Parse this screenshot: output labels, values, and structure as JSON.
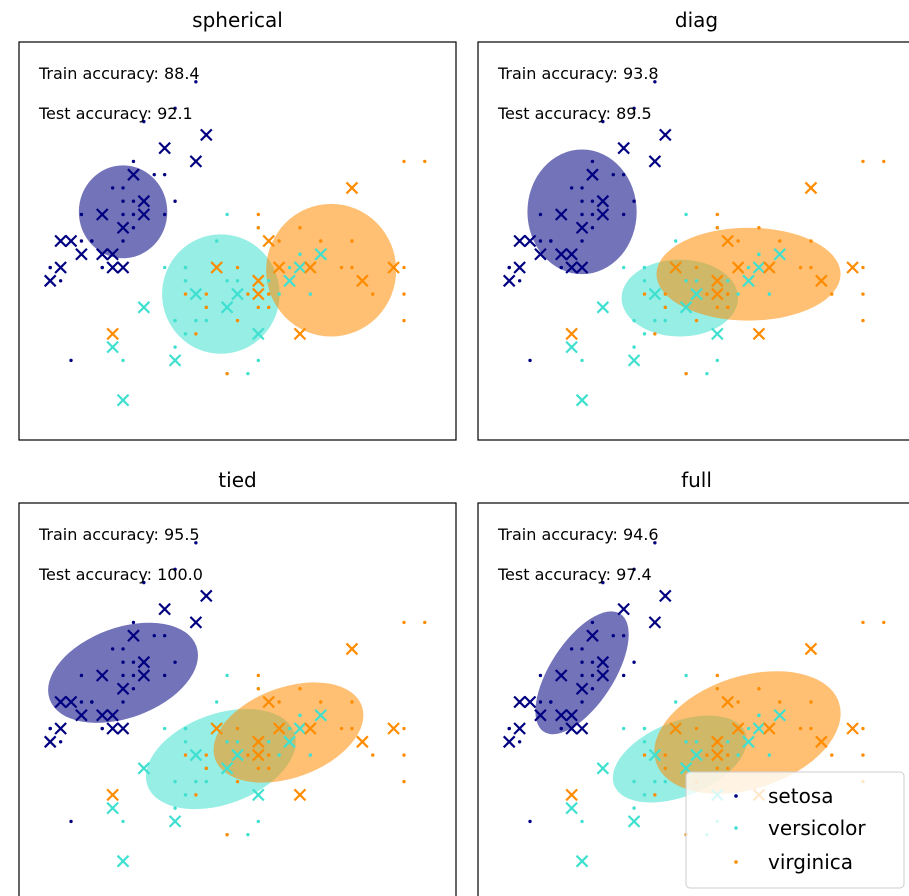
{
  "colors": {
    "setosa": "#000080",
    "versicolor": "#40e0d0",
    "virginica": "#ff8c00"
  },
  "legend": {
    "placement": "lower-right of last panel",
    "entries": [
      "setosa",
      "versicolor",
      "virginica"
    ]
  },
  "chart_data": [
    {
      "type": "scatter",
      "title": "spherical",
      "train_label": "Train accuracy: 88.4",
      "test_label": "Test accuracy: 92.1",
      "xlim": [
        4.0,
        8.2
      ],
      "ylim": [
        1.7,
        4.7
      ],
      "ellipses": [
        {
          "class": "setosa",
          "cx": 5.0,
          "cy": 3.42,
          "w": 0.85,
          "h": 0.7,
          "angle": 0
        },
        {
          "class": "versicolor",
          "cx": 5.94,
          "cy": 2.8,
          "w": 1.13,
          "h": 0.9,
          "angle": 0
        },
        {
          "class": "virginica",
          "cx": 7.0,
          "cy": 2.98,
          "w": 1.25,
          "h": 1.0,
          "angle": 0
        }
      ]
    },
    {
      "type": "scatter",
      "title": "diag",
      "train_label": "Train accuracy: 93.8",
      "test_label": "Test accuracy: 89.5",
      "xlim": [
        4.0,
        8.2
      ],
      "ylim": [
        1.7,
        4.7
      ],
      "ellipses": [
        {
          "class": "setosa",
          "cx": 5.0,
          "cy": 3.42,
          "w": 1.05,
          "h": 0.94,
          "angle": 0
        },
        {
          "class": "versicolor",
          "cx": 5.94,
          "cy": 2.77,
          "w": 1.12,
          "h": 0.58,
          "angle": 0
        },
        {
          "class": "virginica",
          "cx": 6.6,
          "cy": 2.95,
          "w": 1.77,
          "h": 0.7,
          "angle": 0
        }
      ]
    },
    {
      "type": "scatter",
      "title": "tied",
      "train_label": "Train accuracy: 95.5",
      "test_label": "Test accuracy: 100.0",
      "xlim": [
        4.0,
        8.2
      ],
      "ylim": [
        1.7,
        4.7
      ],
      "ellipses": [
        {
          "class": "setosa",
          "cx": 5.0,
          "cy": 3.42,
          "w": 1.5,
          "h": 0.68,
          "angle": 20
        },
        {
          "class": "versicolor",
          "cx": 5.94,
          "cy": 2.77,
          "w": 1.5,
          "h": 0.68,
          "angle": 20
        },
        {
          "class": "virginica",
          "cx": 6.59,
          "cy": 2.97,
          "w": 1.5,
          "h": 0.68,
          "angle": 20
        }
      ]
    },
    {
      "type": "scatter",
      "title": "full",
      "train_label": "Train accuracy: 94.6",
      "test_label": "Test accuracy: 97.4",
      "xlim": [
        4.0,
        8.2
      ],
      "ylim": [
        1.7,
        4.7
      ],
      "ellipses": [
        {
          "class": "setosa",
          "cx": 5.0,
          "cy": 3.42,
          "w": 1.35,
          "h": 0.48,
          "angle": 57
        },
        {
          "class": "versicolor",
          "cx": 5.94,
          "cy": 2.77,
          "w": 1.36,
          "h": 0.56,
          "angle": 22
        },
        {
          "class": "virginica",
          "cx": 6.59,
          "cy": 2.97,
          "w": 1.85,
          "h": 0.85,
          "angle": 18
        }
      ]
    }
  ],
  "train_points": {
    "setosa": [
      [
        5.1,
        3.5
      ],
      [
        4.9,
        3.0
      ],
      [
        4.7,
        3.2
      ],
      [
        4.6,
        3.1
      ],
      [
        5.0,
        3.6
      ],
      [
        5.4,
        3.9
      ],
      [
        4.6,
        3.4
      ],
      [
        5.0,
        3.4
      ],
      [
        4.4,
        2.9
      ],
      [
        4.9,
        3.1
      ],
      [
        5.4,
        3.7
      ],
      [
        4.8,
        3.4
      ],
      [
        4.8,
        3.0
      ],
      [
        4.3,
        3.0
      ],
      [
        5.8,
        4.0
      ],
      [
        5.7,
        4.4
      ],
      [
        5.1,
        3.8
      ],
      [
        5.2,
        3.5
      ],
      [
        5.2,
        3.4
      ],
      [
        4.7,
        3.2
      ],
      [
        4.8,
        3.1
      ],
      [
        5.4,
        3.4
      ],
      [
        5.2,
        4.1
      ],
      [
        5.5,
        4.2
      ],
      [
        5.0,
        3.2
      ],
      [
        5.5,
        3.5
      ],
      [
        4.4,
        3.0
      ],
      [
        5.1,
        3.4
      ],
      [
        4.5,
        2.3
      ],
      [
        5.0,
        3.5
      ],
      [
        5.1,
        3.3
      ],
      [
        4.8,
        3.0
      ],
      [
        5.3,
        3.7
      ],
      [
        4.6,
        3.2
      ],
      [
        4.9,
        3.6
      ],
      [
        5.7,
        3.8
      ],
      [
        4.3,
        3.0
      ],
      [
        4.4,
        3.2
      ]
    ],
    "versicolor": [
      [
        6.4,
        3.2
      ],
      [
        6.9,
        3.1
      ],
      [
        5.5,
        2.3
      ],
      [
        6.5,
        2.8
      ],
      [
        6.3,
        3.3
      ],
      [
        4.9,
        2.4
      ],
      [
        6.6,
        2.9
      ],
      [
        5.2,
        2.7
      ],
      [
        5.0,
        2.0
      ],
      [
        5.9,
        3.0
      ],
      [
        6.0,
        2.2
      ],
      [
        6.1,
        2.9
      ],
      [
        5.6,
        2.9
      ],
      [
        6.7,
        3.1
      ],
      [
        5.6,
        3.0
      ],
      [
        5.8,
        2.7
      ],
      [
        6.2,
        2.2
      ],
      [
        5.6,
        2.5
      ],
      [
        5.9,
        3.2
      ],
      [
        6.1,
        2.8
      ],
      [
        6.3,
        2.5
      ],
      [
        6.4,
        2.9
      ],
      [
        6.6,
        3.0
      ],
      [
        6.8,
        2.8
      ],
      [
        6.0,
        2.9
      ],
      [
        5.7,
        2.6
      ],
      [
        5.5,
        2.4
      ],
      [
        5.8,
        2.7
      ],
      [
        6.0,
        2.7
      ],
      [
        5.4,
        3.0
      ],
      [
        6.0,
        3.4
      ],
      [
        6.7,
        3.1
      ],
      [
        6.3,
        2.3
      ],
      [
        5.6,
        3.0
      ],
      [
        5.5,
        2.6
      ],
      [
        6.1,
        3.0
      ],
      [
        5.8,
        2.6
      ],
      [
        5.0,
        2.3
      ]
    ],
    "virginica": [
      [
        6.3,
        3.3
      ],
      [
        5.8,
        2.7
      ],
      [
        7.1,
        3.0
      ],
      [
        6.3,
        2.9
      ],
      [
        6.5,
        3.0
      ],
      [
        7.6,
        3.0
      ],
      [
        4.9,
        2.5
      ],
      [
        7.3,
        2.9
      ],
      [
        6.7,
        2.5
      ],
      [
        7.2,
        3.6
      ],
      [
        6.5,
        3.2
      ],
      [
        6.4,
        2.7
      ],
      [
        6.8,
        3.0
      ],
      [
        5.7,
        2.5
      ],
      [
        5.8,
        2.8
      ],
      [
        6.4,
        3.2
      ],
      [
        6.5,
        3.0
      ],
      [
        7.7,
        3.8
      ],
      [
        7.7,
        2.6
      ],
      [
        6.0,
        2.2
      ],
      [
        6.9,
        3.2
      ],
      [
        5.6,
        2.8
      ],
      [
        7.7,
        2.8
      ],
      [
        6.3,
        2.7
      ],
      [
        6.7,
        3.3
      ],
      [
        7.2,
        3.2
      ],
      [
        6.2,
        2.8
      ],
      [
        6.1,
        3.0
      ],
      [
        6.4,
        2.8
      ],
      [
        7.2,
        3.0
      ],
      [
        7.4,
        2.8
      ],
      [
        7.9,
        3.8
      ],
      [
        6.4,
        2.8
      ],
      [
        6.1,
        2.6
      ],
      [
        7.7,
        3.0
      ],
      [
        6.3,
        3.4
      ],
      [
        6.9,
        3.1
      ],
      [
        5.9,
        3.0
      ]
    ]
  },
  "test_points": {
    "setosa": [
      [
        5.4,
        3.9
      ],
      [
        5.8,
        4.0
      ],
      [
        5.7,
        3.8
      ],
      [
        5.1,
        3.7
      ],
      [
        5.2,
        3.4
      ],
      [
        4.8,
        3.4
      ],
      [
        4.8,
        3.1
      ],
      [
        4.4,
        3.2
      ],
      [
        4.4,
        3.0
      ],
      [
        4.9,
        3.1
      ],
      [
        5.0,
        3.3
      ],
      [
        4.9,
        3.0
      ],
      [
        5.0,
        3.0
      ],
      [
        4.6,
        3.1
      ],
      [
        4.3,
        2.9
      ],
      [
        4.5,
        3.2
      ],
      [
        5.2,
        3.5
      ]
    ],
    "versicolor": [
      [
        5.0,
        2.0
      ],
      [
        4.9,
        2.4
      ],
      [
        5.2,
        2.7
      ],
      [
        5.5,
        2.3
      ],
      [
        5.7,
        2.8
      ],
      [
        6.1,
        2.8
      ],
      [
        6.3,
        2.5
      ],
      [
        6.6,
        2.9
      ],
      [
        6.7,
        3.0
      ],
      [
        6.9,
        3.1
      ],
      [
        6.0,
        2.7
      ],
      [
        5.9,
        3.0
      ]
    ],
    "virginica": [
      [
        4.9,
        2.5
      ],
      [
        5.9,
        3.0
      ],
      [
        6.3,
        2.9
      ],
      [
        6.4,
        3.2
      ],
      [
        6.5,
        3.0
      ],
      [
        6.7,
        2.5
      ],
      [
        7.2,
        3.6
      ],
      [
        6.8,
        3.0
      ],
      [
        7.6,
        3.0
      ],
      [
        7.3,
        2.9
      ],
      [
        6.3,
        2.8
      ]
    ]
  }
}
